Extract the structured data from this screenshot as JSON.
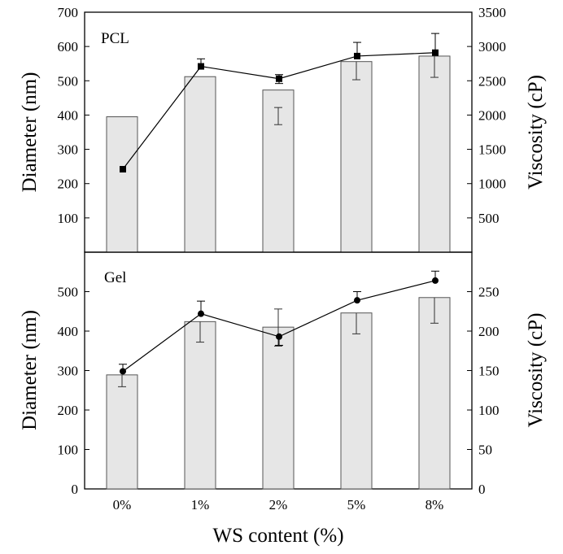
{
  "chart_data": {
    "type": "bar+line",
    "categories": [
      "0%",
      "1%",
      "2%",
      "5%",
      "8%"
    ],
    "xlabel": "WS content (%)",
    "panels": [
      {
        "label": "PCL",
        "ylabel_left": "Diameter (nm)",
        "ylabel_right": "Viscosity (cP)",
        "ylim_left": [
          0,
          700
        ],
        "ylim_right": [
          0,
          3500
        ],
        "yticks_left": [
          100,
          200,
          300,
          400,
          500,
          600,
          700
        ],
        "yticks_right": [
          500,
          1000,
          1500,
          2000,
          2500,
          3000,
          3500
        ],
        "bars": {
          "axis": "left",
          "values": [
            395,
            512,
            473,
            556,
            572
          ],
          "errors": [
            null,
            null,
            [
              422,
              372
            ],
            [
              null,
              503
            ],
            [
              null,
              510
            ]
          ]
        },
        "line": {
          "axis": "right",
          "marker": "square",
          "values": [
            1210,
            2710,
            2530,
            2860,
            2910
          ],
          "errors": [
            [
              null,
              null
            ],
            [
              2820,
              null
            ],
            [
              2590,
              2460
            ],
            [
              3060,
              null
            ],
            [
              3190,
              null
            ]
          ]
        },
        "note": "error bars stored as [top, bottom] in their axis units"
      },
      {
        "label": "Gel",
        "ylabel_left": "Diameter (nm)",
        "ylabel_right": "Viscosity (cP)",
        "ylim_left": [
          0,
          600
        ],
        "ylim_right": [
          0,
          300
        ],
        "yticks_left": [
          0,
          100,
          200,
          300,
          400,
          500
        ],
        "yticks_right": [
          0,
          50,
          100,
          150,
          200,
          250
        ],
        "bars": {
          "axis": "left",
          "values": [
            289,
            424,
            410,
            446,
            485
          ],
          "errors": [
            [
              null,
              259
            ],
            [
              null,
              372
            ],
            [
              456,
              362
            ],
            [
              null,
              393
            ],
            [
              null,
              420
            ]
          ]
        },
        "line": {
          "axis": "right",
          "marker": "circle",
          "values": [
            149,
            222,
            193,
            239,
            264
          ],
          "errors": [
            [
              158,
              null
            ],
            [
              238,
              null
            ],
            [
              null,
              182
            ],
            [
              250,
              null
            ],
            [
              276,
              null
            ]
          ]
        }
      }
    ]
  }
}
